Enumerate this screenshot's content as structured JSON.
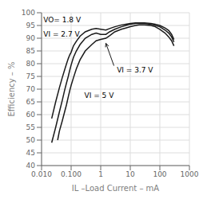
{
  "chart_data": {
    "type": "line",
    "xlabel": "IL –Load Current – mA",
    "ylabel": "Efficiency – %",
    "log": "x",
    "grid": true,
    "xlim": [
      0.01,
      1000
    ],
    "ylim": [
      40,
      100
    ],
    "xticks": [
      {
        "value": 0.01,
        "label": "0.010"
      },
      {
        "value": 0.1,
        "label": "0.100"
      },
      1,
      10,
      100,
      1000
    ],
    "yticks": [
      40,
      45,
      50,
      55,
      60,
      65,
      70,
      75,
      80,
      85,
      90,
      95,
      100
    ],
    "series": [
      {
        "color": "#1a1a1a",
        "x": [
          0.022,
          0.03,
          0.04,
          0.05,
          0.06,
          0.07,
          0.08,
          0.09,
          0.1,
          0.12,
          0.15,
          0.2,
          0.3,
          0.5,
          0.7,
          1.0,
          1.5,
          2.0,
          3.0,
          5.0,
          7.0,
          10,
          15,
          20,
          30,
          50,
          70,
          100,
          150,
          200,
          250,
          300
        ],
        "values": [
          58.5,
          65.0,
          70.5,
          74.5,
          77.5,
          80.0,
          82.0,
          83.5,
          84.5,
          87.0,
          88.8,
          90.8,
          92.5,
          93.5,
          93.8,
          93.5,
          93.2,
          93.8,
          94.5,
          95.2,
          95.5,
          95.8,
          96.0,
          96.0,
          96.0,
          95.8,
          95.5,
          95.0,
          94.0,
          93.0,
          91.5,
          89.5
        ]
      },
      {
        "color": "#1a1a1a",
        "x": [
          0.022,
          0.03,
          0.04,
          0.05,
          0.06,
          0.07,
          0.08,
          0.09,
          0.1,
          0.12,
          0.15,
          0.2,
          0.3,
          0.5,
          0.7,
          1.0,
          1.5,
          2.0,
          3.0,
          5.0,
          7.0,
          10,
          15,
          20,
          30,
          50,
          70,
          100,
          150,
          200,
          250,
          300
        ],
        "values": [
          49.0,
          55.0,
          61.0,
          65.5,
          69.5,
          72.5,
          75.0,
          77.5,
          79.5,
          82.5,
          85.0,
          87.5,
          90.0,
          91.5,
          92.0,
          91.5,
          91.5,
          92.5,
          93.5,
          94.5,
          95.0,
          95.5,
          95.8,
          95.8,
          95.8,
          95.5,
          95.0,
          94.5,
          93.2,
          92.0,
          90.5,
          88.5
        ]
      },
      {
        "color": "#1a1a1a",
        "x": [
          0.035,
          0.04,
          0.05,
          0.06,
          0.07,
          0.08,
          0.09,
          0.1,
          0.12,
          0.15,
          0.2,
          0.3,
          0.5,
          0.7,
          1.0,
          1.5,
          2.0,
          3.0,
          5.0,
          7.0,
          10,
          15,
          20,
          30,
          50,
          70,
          100,
          150,
          200,
          250,
          300
        ],
        "values": [
          50.0,
          53.5,
          57.5,
          61.0,
          64.0,
          67.0,
          69.5,
          71.5,
          74.5,
          78.0,
          81.5,
          85.0,
          87.5,
          89.0,
          89.5,
          90.0,
          91.0,
          92.5,
          93.5,
          94.0,
          94.5,
          95.0,
          95.2,
          95.2,
          95.0,
          94.5,
          93.5,
          92.0,
          90.5,
          89.0,
          87.0
        ]
      }
    ],
    "annotations": [
      {
        "text": "VO= 1.8 V",
        "x": 0.0115,
        "y": 97.2
      },
      {
        "text": "VI = 2.7 V",
        "x": 0.0115,
        "y": 91.5
      },
      {
        "text": "VI = 3.7 V",
        "x": 3.5,
        "y": 77.5
      },
      {
        "text": "VI = 5 V",
        "x": 0.28,
        "y": 67.5
      }
    ],
    "arrows": [
      {
        "from": [
          2.8,
          79.2
        ],
        "to": [
          1.5,
          88.0
        ]
      }
    ]
  }
}
